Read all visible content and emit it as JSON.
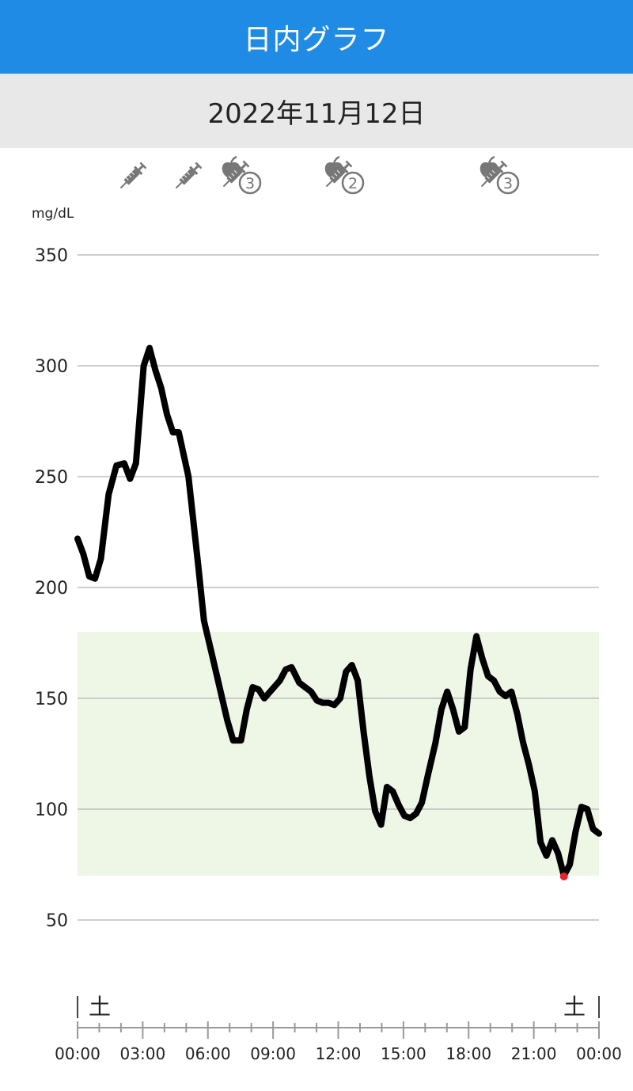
{
  "header": {
    "title": "日内グラフ"
  },
  "date_bar": {
    "date": "2022年11月12日"
  },
  "colors": {
    "header_bg": "#1f8be4",
    "target_band": "#eef6e6",
    "line": "#000000",
    "low_point": "#e8202a",
    "icon": "#777777"
  },
  "events": [
    {
      "time": "01:10",
      "icon": "syringe-icon",
      "label": ""
    },
    {
      "time": "03:35",
      "icon": "syringe-icon",
      "label": ""
    },
    {
      "time": "06:00",
      "icon": "meal-insulin-icon",
      "label": "3"
    },
    {
      "time": "11:00",
      "icon": "meal-insulin-icon",
      "label": "2"
    },
    {
      "time": "18:10",
      "icon": "meal-insulin-icon",
      "label": "3"
    }
  ],
  "chart_data": {
    "type": "line",
    "ylabel": "mg/dL",
    "ylim": [
      40,
      350
    ],
    "yticks": [
      50,
      100,
      150,
      200,
      250,
      300,
      350
    ],
    "xlim": [
      "00:00",
      "24:00"
    ],
    "xtick_labels": [
      "00:00",
      "03:00",
      "06:00",
      "09:00",
      "12:00",
      "15:00",
      "18:00",
      "21:00",
      "00:00"
    ],
    "day_labels": [
      "土",
      "土"
    ],
    "target_range": [
      70,
      180
    ],
    "grid": true,
    "series": [
      {
        "values": [
          [
            0,
            222
          ],
          [
            0.3,
            215
          ],
          [
            0.6,
            205
          ],
          [
            0.9,
            204
          ],
          [
            1.2,
            213
          ],
          [
            1.6,
            242
          ],
          [
            2.0,
            255
          ],
          [
            2.4,
            256
          ],
          [
            2.7,
            249
          ],
          [
            3.0,
            256
          ],
          [
            3.4,
            300
          ],
          [
            3.7,
            308
          ],
          [
            4.0,
            298
          ],
          [
            4.3,
            290
          ],
          [
            4.6,
            278
          ],
          [
            4.9,
            270
          ],
          [
            5.2,
            270
          ],
          [
            5.7,
            250
          ],
          [
            6.2,
            210
          ],
          [
            6.5,
            185
          ],
          [
            6.9,
            170
          ],
          [
            7.3,
            155
          ],
          [
            7.7,
            140
          ],
          [
            8.0,
            131
          ],
          [
            8.4,
            131
          ],
          [
            8.7,
            145
          ],
          [
            9.0,
            155
          ],
          [
            9.3,
            154
          ],
          [
            9.6,
            150
          ],
          [
            10.0,
            154
          ],
          [
            10.4,
            158
          ],
          [
            10.7,
            163
          ],
          [
            11.0,
            164
          ],
          [
            11.4,
            157
          ],
          [
            11.7,
            155
          ],
          [
            12.0,
            153
          ],
          [
            12.3,
            149
          ],
          [
            12.6,
            148
          ],
          [
            12.9,
            148
          ],
          [
            13.2,
            147
          ],
          [
            13.5,
            150
          ],
          [
            13.8,
            162
          ],
          [
            14.1,
            165
          ],
          [
            14.4,
            158
          ],
          [
            14.7,
            135
          ],
          [
            15.0,
            115
          ],
          [
            15.3,
            99
          ],
          [
            15.6,
            93
          ],
          [
            15.9,
            110
          ],
          [
            16.2,
            108
          ],
          [
            16.5,
            102
          ],
          [
            16.8,
            97
          ],
          [
            17.1,
            96
          ],
          [
            17.4,
            98
          ],
          [
            17.7,
            103
          ],
          [
            18.0,
            115
          ],
          [
            18.4,
            130
          ],
          [
            18.7,
            145
          ],
          [
            19.0,
            153
          ],
          [
            19.3,
            145
          ],
          [
            19.6,
            135
          ],
          [
            19.9,
            137
          ],
          [
            20.2,
            163
          ],
          [
            20.5,
            178
          ],
          [
            20.8,
            168
          ],
          [
            21.1,
            160
          ],
          [
            21.4,
            158
          ],
          [
            21.7,
            153
          ],
          [
            22.0,
            151
          ],
          [
            22.3,
            153
          ],
          [
            22.6,
            143
          ],
          [
            22.9,
            130
          ],
          [
            23.2,
            120
          ],
          [
            23.5,
            108
          ],
          [
            23.8,
            85
          ],
          [
            24.1,
            79
          ],
          [
            24.4,
            86
          ],
          [
            24.7,
            80
          ],
          [
            25.0,
            70
          ],
          [
            25.3,
            75
          ],
          [
            25.6,
            90
          ],
          [
            25.9,
            101
          ],
          [
            26.2,
            100
          ],
          [
            26.5,
            91
          ],
          [
            26.8,
            89
          ]
        ]
      }
    ],
    "x_units": "hours since 00:00 (axis spans 0–24 with x-scale stretched)",
    "low_marker": [
      25.0,
      70
    ]
  }
}
